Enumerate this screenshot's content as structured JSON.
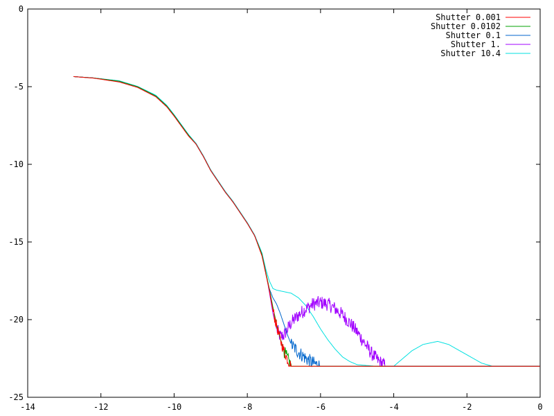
{
  "chart_data": {
    "type": "line",
    "title": "",
    "xlabel": "",
    "ylabel": "",
    "xlim": [
      -14,
      0
    ],
    "ylim": [
      -25,
      0
    ],
    "x_ticks": [
      -14,
      -12,
      -10,
      -8,
      -6,
      -4,
      -2,
      0
    ],
    "y_ticks": [
      0,
      -5,
      -10,
      -15,
      -20,
      -25
    ],
    "grid": false,
    "legend_position": "top-right",
    "floor": -23,
    "series": [
      {
        "name": "Shutter 0.001",
        "color": "#ff0000",
        "points": [
          [
            -12.75,
            -4.35
          ],
          [
            -12.2,
            -4.45
          ],
          [
            -11.5,
            -4.7
          ],
          [
            -11.0,
            -5.05
          ],
          [
            -10.5,
            -5.65
          ],
          [
            -10.2,
            -6.3
          ],
          [
            -10.0,
            -6.9
          ],
          [
            -9.8,
            -7.55
          ],
          [
            -9.6,
            -8.2
          ],
          [
            -9.4,
            -8.7
          ],
          [
            -9.2,
            -9.5
          ],
          [
            -9.0,
            -10.4
          ],
          [
            -8.8,
            -11.1
          ],
          [
            -8.6,
            -11.8
          ],
          [
            -8.4,
            -12.4
          ],
          [
            -8.2,
            -13.1
          ],
          [
            -8.0,
            -13.8
          ],
          [
            -7.8,
            -14.6
          ],
          [
            -7.6,
            -15.9
          ],
          [
            -7.5,
            -17.0
          ],
          [
            -7.4,
            -18.1
          ],
          [
            -7.3,
            -19.4
          ],
          [
            -7.2,
            -20.4
          ],
          [
            -7.1,
            -21.3
          ],
          [
            -7.0,
            -22.0
          ],
          [
            -6.9,
            -22.6
          ],
          [
            -6.8,
            -23.0
          ],
          [
            0,
            -23.0
          ]
        ]
      },
      {
        "name": "Shutter 0.0102",
        "color": "#00a000",
        "points": [
          [
            -12.75,
            -4.35
          ],
          [
            -12.2,
            -4.44
          ],
          [
            -11.5,
            -4.65
          ],
          [
            -11.0,
            -5.0
          ],
          [
            -10.5,
            -5.6
          ],
          [
            -10.2,
            -6.25
          ],
          [
            -10.0,
            -6.85
          ],
          [
            -9.8,
            -7.5
          ],
          [
            -9.6,
            -8.15
          ],
          [
            -9.4,
            -8.7
          ],
          [
            -9.2,
            -9.5
          ],
          [
            -9.0,
            -10.4
          ],
          [
            -8.8,
            -11.1
          ],
          [
            -8.6,
            -11.8
          ],
          [
            -8.4,
            -12.4
          ],
          [
            -8.2,
            -13.1
          ],
          [
            -8.0,
            -13.8
          ],
          [
            -7.8,
            -14.6
          ],
          [
            -7.6,
            -15.8
          ],
          [
            -7.5,
            -16.9
          ],
          [
            -7.4,
            -18.0
          ],
          [
            -7.3,
            -19.2
          ],
          [
            -7.2,
            -20.3
          ],
          [
            -7.1,
            -21.2
          ],
          [
            -7.0,
            -22.0
          ],
          [
            -6.9,
            -22.5
          ],
          [
            -6.8,
            -23.0
          ],
          [
            0,
            -23.0
          ]
        ]
      },
      {
        "name": "Shutter 0.1",
        "color": "#0066cc",
        "points": [
          [
            -12.75,
            -4.35
          ],
          [
            -12.2,
            -4.44
          ],
          [
            -11.5,
            -4.65
          ],
          [
            -11.0,
            -5.0
          ],
          [
            -10.5,
            -5.6
          ],
          [
            -10.2,
            -6.25
          ],
          [
            -10.0,
            -6.85
          ],
          [
            -9.8,
            -7.5
          ],
          [
            -9.6,
            -8.15
          ],
          [
            -9.4,
            -8.7
          ],
          [
            -9.2,
            -9.5
          ],
          [
            -9.0,
            -10.4
          ],
          [
            -8.8,
            -11.1
          ],
          [
            -8.6,
            -11.8
          ],
          [
            -8.4,
            -12.4
          ],
          [
            -8.2,
            -13.1
          ],
          [
            -8.0,
            -13.8
          ],
          [
            -7.8,
            -14.6
          ],
          [
            -7.6,
            -15.8
          ],
          [
            -7.5,
            -17.0
          ],
          [
            -7.4,
            -18.0
          ],
          [
            -7.3,
            -18.6
          ],
          [
            -7.2,
            -19.0
          ],
          [
            -7.1,
            -19.6
          ],
          [
            -7.0,
            -20.3
          ],
          [
            -6.9,
            -21.0
          ],
          [
            -6.8,
            -21.6
          ],
          [
            -6.6,
            -22.1
          ],
          [
            -6.4,
            -22.5
          ],
          [
            -6.2,
            -22.8
          ],
          [
            -6.0,
            -23.0
          ],
          [
            0,
            -23.0
          ]
        ]
      },
      {
        "name": "Shutter 1.",
        "color": "#a000ff",
        "points": [
          [
            -12.75,
            -4.35
          ],
          [
            -12.2,
            -4.44
          ],
          [
            -11.5,
            -4.65
          ],
          [
            -11.0,
            -5.0
          ],
          [
            -10.5,
            -5.6
          ],
          [
            -10.2,
            -6.25
          ],
          [
            -10.0,
            -6.85
          ],
          [
            -9.8,
            -7.5
          ],
          [
            -9.6,
            -8.15
          ],
          [
            -9.4,
            -8.7
          ],
          [
            -9.2,
            -9.5
          ],
          [
            -9.0,
            -10.4
          ],
          [
            -8.8,
            -11.1
          ],
          [
            -8.6,
            -11.8
          ],
          [
            -8.4,
            -12.4
          ],
          [
            -8.2,
            -13.1
          ],
          [
            -8.0,
            -13.8
          ],
          [
            -7.8,
            -14.6
          ],
          [
            -7.6,
            -15.8
          ],
          [
            -7.5,
            -16.9
          ],
          [
            -7.4,
            -18.2
          ],
          [
            -7.3,
            -19.6
          ],
          [
            -7.2,
            -20.6
          ],
          [
            -7.1,
            -21.1
          ],
          [
            -7.0,
            -21.0
          ],
          [
            -6.9,
            -20.6
          ],
          [
            -6.8,
            -20.2
          ],
          [
            -6.6,
            -19.7
          ],
          [
            -6.4,
            -19.3
          ],
          [
            -6.2,
            -19.0
          ],
          [
            -6.0,
            -18.9
          ],
          [
            -5.8,
            -19.0
          ],
          [
            -5.6,
            -19.3
          ],
          [
            -5.4,
            -19.7
          ],
          [
            -5.2,
            -20.2
          ],
          [
            -5.0,
            -20.8
          ],
          [
            -4.8,
            -21.5
          ],
          [
            -4.6,
            -22.2
          ],
          [
            -4.4,
            -22.7
          ],
          [
            -4.2,
            -23.0
          ],
          [
            0,
            -23.0
          ]
        ]
      },
      {
        "name": "Shutter 10.4",
        "color": "#00e0e0",
        "points": [
          [
            -12.75,
            -4.35
          ],
          [
            -12.2,
            -4.44
          ],
          [
            -11.5,
            -4.62
          ],
          [
            -11.0,
            -4.98
          ],
          [
            -10.5,
            -5.55
          ],
          [
            -10.2,
            -6.2
          ],
          [
            -10.0,
            -6.8
          ],
          [
            -9.8,
            -7.45
          ],
          [
            -9.6,
            -8.1
          ],
          [
            -9.4,
            -8.65
          ],
          [
            -9.2,
            -9.45
          ],
          [
            -9.0,
            -10.35
          ],
          [
            -8.8,
            -11.05
          ],
          [
            -8.6,
            -11.75
          ],
          [
            -8.4,
            -12.35
          ],
          [
            -8.2,
            -13.05
          ],
          [
            -8.0,
            -13.75
          ],
          [
            -7.8,
            -14.55
          ],
          [
            -7.6,
            -15.7
          ],
          [
            -7.5,
            -16.7
          ],
          [
            -7.4,
            -17.5
          ],
          [
            -7.3,
            -18.0
          ],
          [
            -7.2,
            -18.1
          ],
          [
            -7.0,
            -18.2
          ],
          [
            -6.8,
            -18.3
          ],
          [
            -6.6,
            -18.6
          ],
          [
            -6.4,
            -19.1
          ],
          [
            -6.2,
            -19.8
          ],
          [
            -6.0,
            -20.6
          ],
          [
            -5.8,
            -21.3
          ],
          [
            -5.6,
            -21.9
          ],
          [
            -5.4,
            -22.4
          ],
          [
            -5.2,
            -22.7
          ],
          [
            -5.0,
            -22.9
          ],
          [
            -4.5,
            -23.0
          ],
          [
            -4.0,
            -23.0
          ],
          [
            -3.8,
            -22.6
          ],
          [
            -3.5,
            -22.0
          ],
          [
            -3.2,
            -21.6
          ],
          [
            -2.8,
            -21.4
          ],
          [
            -2.5,
            -21.6
          ],
          [
            -2.2,
            -22.0
          ],
          [
            -1.9,
            -22.4
          ],
          [
            -1.6,
            -22.8
          ],
          [
            -1.3,
            -23.0
          ],
          [
            0,
            -23.0
          ]
        ]
      }
    ],
    "noise": [
      {
        "x": [
          -7.3,
          -6.8
        ],
        "amp": 0.35
      },
      {
        "x": [
          -7.0,
          -6.0
        ],
        "amp": 0.4
      },
      {
        "x": [
          -6.8,
          -4.2
        ],
        "amp": 0.45
      },
      {
        "x": [
          -7.2,
          -1.3
        ],
        "amp": 0.45
      }
    ]
  }
}
